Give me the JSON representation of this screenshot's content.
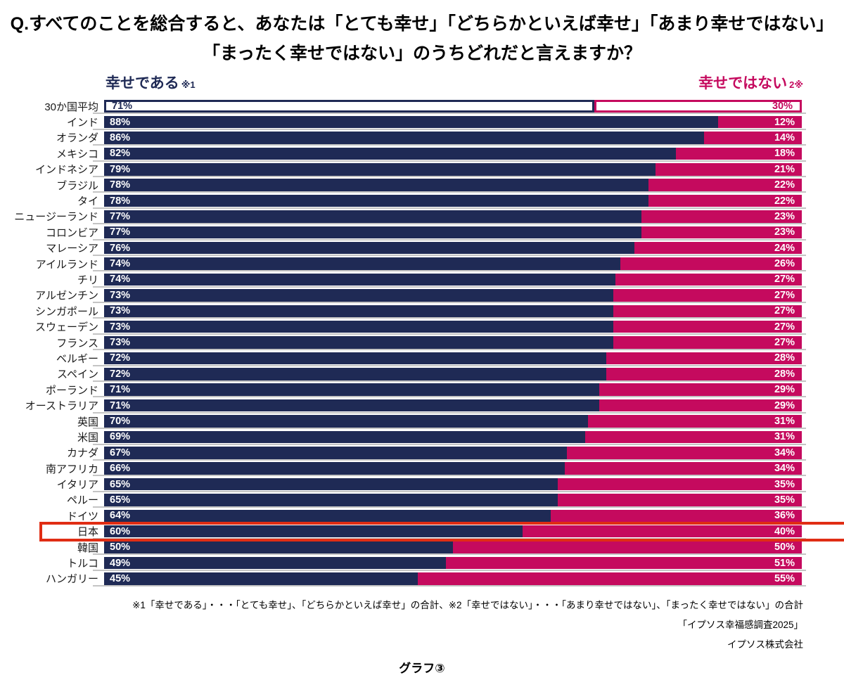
{
  "title": {
    "line1": "Q.すべてのことを総合すると、あなたは「とても幸せ」「どちらかといえば幸せ」「あまり幸せではない」",
    "line2": "「まったく幸せではない」のうちどれだと言えますか？"
  },
  "legend": {
    "happy_label": "幸せである",
    "happy_note": "※1",
    "unhappy_label": "幸せではない",
    "unhappy_note": "2※"
  },
  "colors": {
    "happy": "#1f2a55",
    "unhappy": "#c50a5e",
    "highlight_box": "#e02d14",
    "gridline": "#c4c4c4"
  },
  "chart_data": {
    "type": "bar",
    "orientation": "horizontal",
    "stacked": true,
    "value_suffix": "%",
    "categories": [
      "30か国平均",
      "インド",
      "オランダ",
      "メキシコ",
      "インドネシア",
      "ブラジル",
      "タイ",
      "ニュージーランド",
      "コロンビア",
      "マレーシア",
      "アイルランド",
      "チリ",
      "アルゼンチン",
      "シンガポール",
      "スウェーデン",
      "フランス",
      "ベルギー",
      "スペイン",
      "ポーランド",
      "オーストラリア",
      "英国",
      "米国",
      "カナダ",
      "南アフリカ",
      "イタリア",
      "ペルー",
      "ドイツ",
      "日本",
      "韓国",
      "トルコ",
      "ハンガリー"
    ],
    "series": [
      {
        "name": "幸せである",
        "values": [
          71,
          88,
          86,
          82,
          79,
          78,
          78,
          77,
          77,
          76,
          74,
          74,
          73,
          73,
          73,
          73,
          72,
          72,
          71,
          71,
          70,
          69,
          67,
          66,
          65,
          65,
          64,
          60,
          50,
          49,
          45
        ]
      },
      {
        "name": "幸せではない",
        "values": [
          30,
          12,
          14,
          18,
          21,
          22,
          22,
          23,
          23,
          24,
          26,
          27,
          27,
          27,
          27,
          27,
          28,
          28,
          29,
          29,
          31,
          31,
          34,
          34,
          35,
          35,
          36,
          40,
          50,
          51,
          55
        ]
      }
    ],
    "outlined_category": "30か国平均",
    "highlight_category": "日本",
    "xlim": [
      0,
      100
    ],
    "grid": "row-separators",
    "legend_position": "top"
  },
  "footnotes": {
    "definitions": "※1「幸せである」・・・「とても幸せ」、「どちらかといえば幸せ」の合計、※2「幸せではない」・・・「あまり幸せではない」、「まったく幸せではない」の合計",
    "source": "「イプソス幸福感調査2025」",
    "company": "イプソス株式会社"
  },
  "caption": "グラフ③"
}
